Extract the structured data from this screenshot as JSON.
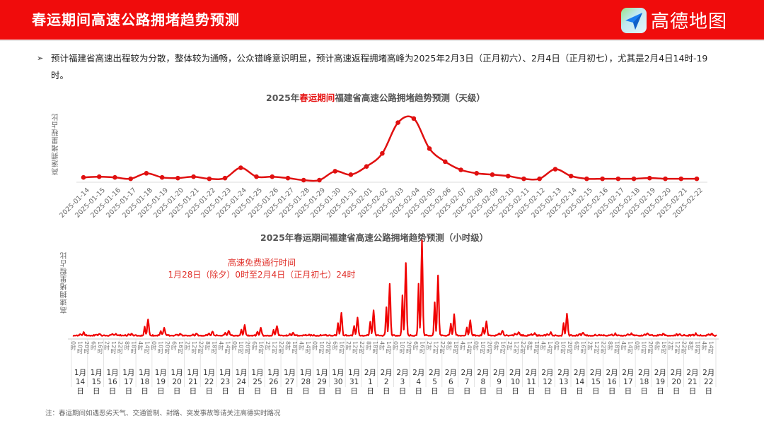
{
  "header": {
    "title": "春运期间高速公路拥堵趋势预测",
    "brand": "高德地图",
    "brand_icon": "gaode-paper-plane-icon",
    "bg_color": "#f00c0c"
  },
  "summary": {
    "bullet": "➢",
    "text": "预计福建省高速出程较为分散，整体较为通畅，公众错峰意识明显，预计高速返程拥堵高峰为2025年2月3日（正月初六）、2月4日（正月初七），尤其是2月4日14时-19时。"
  },
  "annotation": {
    "line1": "高速免费通行时间",
    "line2": "1月28日（除夕）0时至2月4日（正月初七）24时"
  },
  "footnote": "注：春运期间如遇恶劣天气、交通管制、封路、突发事故等请关注高德实时路况",
  "chart_data": [
    {
      "type": "line",
      "title_prefix": "2025年",
      "title_highlight": "春运期间",
      "title_suffix": "福建省高速公路拥堵趋势预测（天级）",
      "title": "2025年春运期间福建省高速公路拥堵趋势预测（天级）",
      "xlabel": "",
      "ylabel": "高速拥堵里程占比",
      "color": "#e01010",
      "grid": false,
      "legend": "none",
      "y_unit": "relative (0-100, no axis ticks shown)",
      "ylim": [
        0,
        100
      ],
      "categories": [
        "2025-01-14",
        "2025-01-15",
        "2025-01-16",
        "2025-01-17",
        "2025-01-18",
        "2025-01-19",
        "2025-01-20",
        "2025-01-21",
        "2025-01-22",
        "2025-01-23",
        "2025-01-24",
        "2025-01-25",
        "2025-01-26",
        "2025-01-27",
        "2025-01-28",
        "2025-01-29",
        "2025-01-30",
        "2025-01-31",
        "2025-02-01",
        "2025-02-02",
        "2025-02-03",
        "2025-02-04",
        "2025-02-05",
        "2025-02-06",
        "2025-02-07",
        "2025-02-08",
        "2025-02-09",
        "2025-02-10",
        "2025-02-11",
        "2025-02-12",
        "2025-02-13",
        "2025-02-14",
        "2025-02-15",
        "2025-02-16",
        "2025-02-17",
        "2025-02-18",
        "2025-02-19",
        "2025-02-20",
        "2025-02-21",
        "2025-02-22"
      ],
      "values": [
        6,
        7,
        6,
        4,
        12,
        6,
        5,
        7,
        4,
        5,
        20,
        7,
        7,
        5,
        2,
        2,
        15,
        10,
        22,
        41,
        86,
        92,
        48,
        29,
        17,
        12,
        10,
        8,
        4,
        4,
        18,
        8,
        4,
        4,
        4,
        4,
        5,
        4,
        4,
        4
      ]
    },
    {
      "type": "line",
      "title": "2025年春运期间福建省高速公路拥堵趋势预测（小时级）",
      "xlabel": "",
      "ylabel": "高速拥堵里程占比",
      "color": "#f00000",
      "grid": false,
      "legend": "none",
      "ylim": [
        0,
        100
      ],
      "hour_tick_labels": [
        "0时",
        "10时",
        "20时",
        "6时",
        "16时",
        "2时",
        "12时",
        "22时",
        "8时",
        "18时",
        "4时",
        "14时"
      ],
      "day_labels": [
        {
          "m": "1月",
          "d": "14日"
        },
        {
          "m": "1月",
          "d": "15日"
        },
        {
          "m": "1月",
          "d": "16日"
        },
        {
          "m": "1月",
          "d": "17日"
        },
        {
          "m": "1月",
          "d": "18日"
        },
        {
          "m": "1月",
          "d": "19日"
        },
        {
          "m": "1月",
          "d": "20日"
        },
        {
          "m": "1月",
          "d": "21日"
        },
        {
          "m": "1月",
          "d": "22日"
        },
        {
          "m": "1月",
          "d": "23日"
        },
        {
          "m": "1月",
          "d": "24日"
        },
        {
          "m": "1月",
          "d": "25日"
        },
        {
          "m": "1月",
          "d": "26日"
        },
        {
          "m": "1月",
          "d": "27日"
        },
        {
          "m": "1月",
          "d": "28日"
        },
        {
          "m": "1月",
          "d": "29日"
        },
        {
          "m": "1月",
          "d": "30日"
        },
        {
          "m": "1月",
          "d": "31日"
        },
        {
          "m": "2月1",
          "d": "日"
        },
        {
          "m": "2月2",
          "d": "日"
        },
        {
          "m": "2月3",
          "d": "日"
        },
        {
          "m": "2月4",
          "d": "日"
        },
        {
          "m": "2月5",
          "d": "日"
        },
        {
          "m": "2月6",
          "d": "日"
        },
        {
          "m": "2月7",
          "d": "日"
        },
        {
          "m": "2月8",
          "d": "日"
        },
        {
          "m": "2月9",
          "d": "日"
        },
        {
          "m": "2月",
          "d": "10日"
        },
        {
          "m": "2月",
          "d": "11日"
        },
        {
          "m": "2月",
          "d": "12日"
        },
        {
          "m": "2月",
          "d": "13日"
        },
        {
          "m": "2月",
          "d": "14日"
        },
        {
          "m": "2月",
          "d": "15日"
        },
        {
          "m": "2月",
          "d": "16日"
        },
        {
          "m": "2月",
          "d": "17日"
        },
        {
          "m": "2月",
          "d": "18日"
        },
        {
          "m": "2月",
          "d": "19日"
        },
        {
          "m": "2月",
          "d": "20日"
        },
        {
          "m": "2月",
          "d": "21日"
        },
        {
          "m": "2月",
          "d": "22日"
        }
      ],
      "daily_peaks": [
        3,
        2,
        2,
        2,
        17,
        8,
        2,
        2,
        4,
        5,
        11,
        8,
        10,
        3,
        1,
        1,
        24,
        19,
        27,
        55,
        77,
        100,
        63,
        22,
        16,
        15,
        5,
        4,
        2,
        3,
        23,
        3,
        1,
        2,
        2,
        2,
        2,
        2,
        2,
        2
      ]
    }
  ]
}
